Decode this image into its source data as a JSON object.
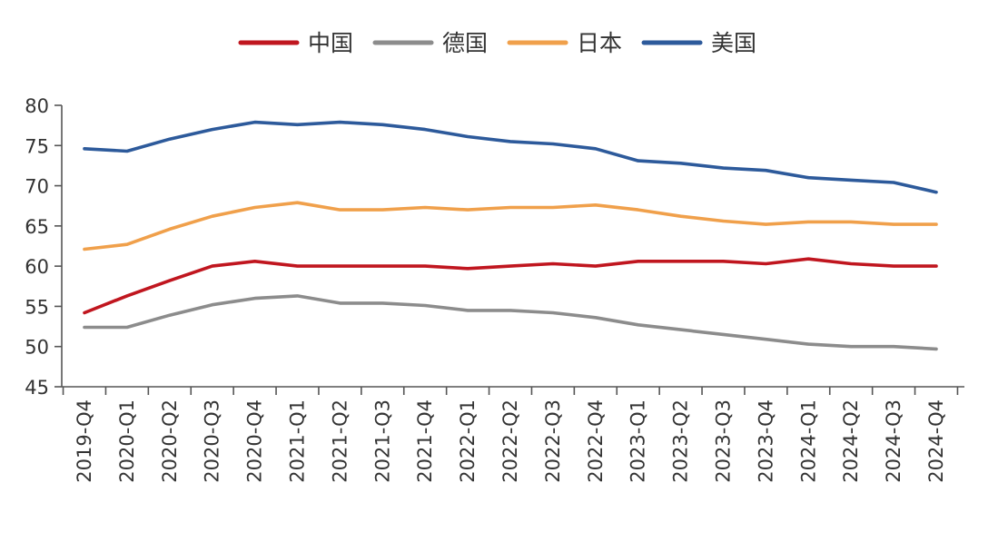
{
  "chart_data": {
    "type": "line",
    "title": "",
    "xlabel": "",
    "ylabel": "",
    "categories": [
      "2019-Q4",
      "2020-Q1",
      "2020-Q2",
      "2020-Q3",
      "2020-Q4",
      "2021-Q1",
      "2021-Q2",
      "2021-Q3",
      "2021-Q4",
      "2022-Q1",
      "2022-Q2",
      "2022-Q3",
      "2022-Q4",
      "2023-Q1",
      "2023-Q2",
      "2023-Q3",
      "2023-Q4",
      "2024-Q1",
      "2024-Q2",
      "2024-Q3",
      "2024-Q4"
    ],
    "ylim": [
      45,
      80
    ],
    "yticks": [
      45,
      50,
      55,
      60,
      65,
      70,
      75,
      80
    ],
    "grid": false,
    "legend_position": "top",
    "series": [
      {
        "name": "中国",
        "color": "#c0161f",
        "values": [
          54.2,
          56.3,
          58.2,
          60.0,
          60.6,
          60.0,
          60.0,
          60.0,
          60.0,
          59.7,
          60.0,
          60.3,
          60.0,
          60.6,
          60.6,
          60.6,
          60.3,
          60.9,
          60.3,
          60.0,
          60.0
        ]
      },
      {
        "name": "德国",
        "color": "#8c8c8c",
        "values": [
          52.4,
          52.4,
          53.9,
          55.2,
          56.0,
          56.3,
          55.4,
          55.4,
          55.1,
          54.5,
          54.5,
          54.2,
          53.6,
          52.7,
          52.1,
          51.5,
          50.9,
          50.3,
          50.0,
          50.0,
          49.7
        ]
      },
      {
        "name": "日本",
        "color": "#f0a04b",
        "values": [
          62.1,
          62.7,
          64.6,
          66.2,
          67.3,
          67.9,
          67.0,
          67.0,
          67.3,
          67.0,
          67.3,
          67.3,
          67.6,
          67.0,
          66.2,
          65.6,
          65.2,
          65.5,
          65.5,
          65.2,
          65.2
        ]
      },
      {
        "name": "美国",
        "color": "#2d5a9b",
        "values": [
          74.6,
          74.3,
          75.8,
          77.0,
          77.9,
          77.6,
          77.9,
          77.6,
          77.0,
          76.1,
          75.5,
          75.2,
          74.6,
          73.1,
          72.8,
          72.2,
          71.9,
          71.0,
          70.7,
          70.4,
          69.2
        ]
      }
    ]
  }
}
